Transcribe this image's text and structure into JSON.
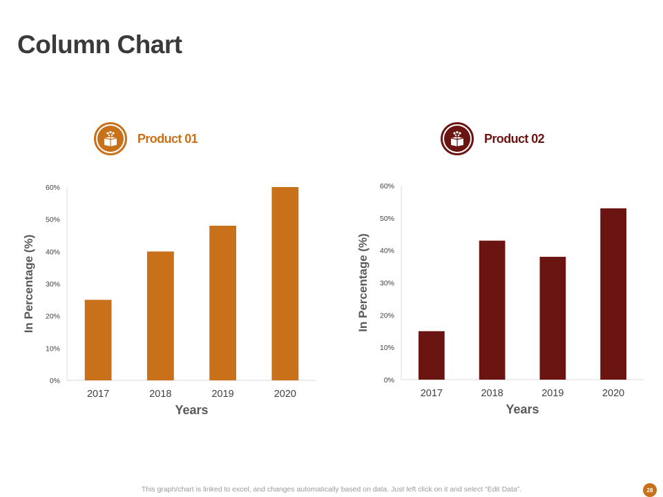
{
  "page": {
    "title": "Column Chart",
    "footer_note": "This graph/chart is linked to excel,  and changes automatically based on data. Just left click on it and select “Edit Data”.",
    "page_number": "28"
  },
  "legend": [
    {
      "label": "Product 01",
      "icon": "gift-box-icon",
      "color": "#c8701a"
    },
    {
      "label": "Product 02",
      "icon": "gift-box-icon",
      "color": "#6b1512"
    }
  ],
  "chart_data": [
    {
      "type": "bar",
      "title": "Product 01",
      "categories": [
        "2017",
        "2018",
        "2019",
        "2020"
      ],
      "values": [
        25,
        40,
        48,
        60
      ],
      "xlabel": "Years",
      "ylabel": "In Percentage (%)",
      "ylim": [
        0,
        60
      ],
      "yticks": [
        "0%",
        "10%",
        "20%",
        "30%",
        "40%",
        "50%",
        "60%"
      ],
      "color": "#c8701a",
      "grid": false
    },
    {
      "type": "bar",
      "title": "Product 02",
      "categories": [
        "2017",
        "2018",
        "2019",
        "2020"
      ],
      "values": [
        15,
        43,
        38,
        53
      ],
      "xlabel": "Years",
      "ylabel": "In Percentage (%)",
      "ylim": [
        0,
        60
      ],
      "yticks": [
        "0%",
        "10%",
        "20%",
        "30%",
        "40%",
        "50%",
        "60%"
      ],
      "color": "#6b1512",
      "grid": false
    }
  ]
}
